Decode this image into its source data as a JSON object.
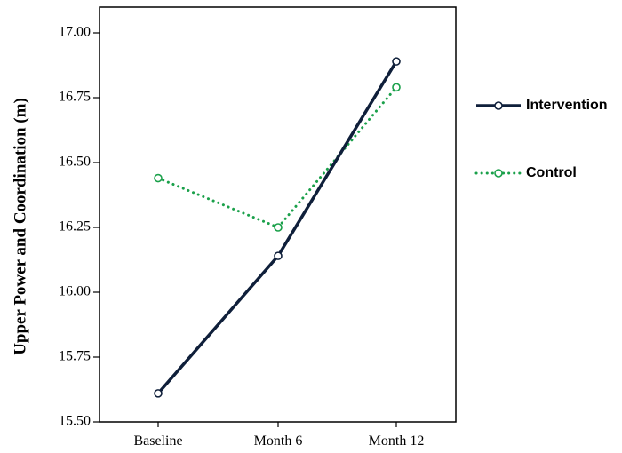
{
  "chart_data": {
    "type": "line",
    "categories": [
      "Baseline",
      "Month 6",
      "Month 12"
    ],
    "ylabel": "Upper Power and Coordination (m)",
    "ylim": [
      15.5,
      17.0
    ],
    "yticks": [
      "15.50",
      "15.75",
      "16.00",
      "16.25",
      "16.50",
      "16.75",
      "17.00"
    ],
    "grid": false,
    "legend_position": "right",
    "series": [
      {
        "name": "Intervention",
        "values": [
          15.61,
          16.14,
          16.89
        ],
        "color": "#0f1f3a",
        "style": "solid"
      },
      {
        "name": "Control",
        "values": [
          16.44,
          16.25,
          16.79
        ],
        "color": "#1aa04a",
        "style": "dotted"
      }
    ]
  }
}
